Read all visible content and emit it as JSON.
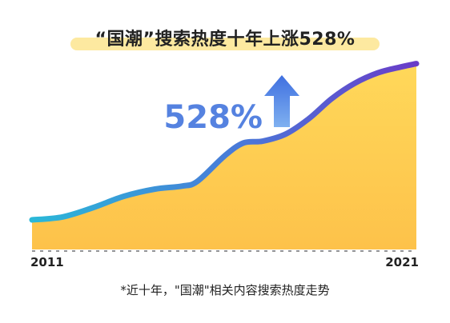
{
  "chart_data": {
    "type": "area",
    "title": "“国潮”搜索热度十年上涨528%",
    "x_labels": [
      "2011",
      "2021"
    ],
    "x_range": [
      2011,
      2021
    ],
    "growth_label": "528%",
    "growth_percent": 528,
    "points": [
      {
        "x": 2011.0,
        "y": 100
      },
      {
        "x": 2011.8,
        "y": 110
      },
      {
        "x": 2012.6,
        "y": 142
      },
      {
        "x": 2013.4,
        "y": 180
      },
      {
        "x": 2014.2,
        "y": 204
      },
      {
        "x": 2014.9,
        "y": 214
      },
      {
        "x": 2015.3,
        "y": 230
      },
      {
        "x": 2016.0,
        "y": 315
      },
      {
        "x": 2016.5,
        "y": 360
      },
      {
        "x": 2017.0,
        "y": 366
      },
      {
        "x": 2017.6,
        "y": 390
      },
      {
        "x": 2018.2,
        "y": 442
      },
      {
        "x": 2018.8,
        "y": 510
      },
      {
        "x": 2019.4,
        "y": 562
      },
      {
        "x": 2020.0,
        "y": 597
      },
      {
        "x": 2020.6,
        "y": 617
      },
      {
        "x": 2021.0,
        "y": 628
      }
    ],
    "caption": "*近十年，\"国潮\"相关内容搜索热度走势",
    "colors": {
      "area_top": "#ffd85a",
      "area_bottom": "#fdc24a",
      "line_start": "#2ab8d8",
      "line_mid": "#4a78d8",
      "line_end": "#6a3cc8",
      "arrow": "#4a7ee0",
      "callout_text": "#5582e0",
      "title_highlight": "#fde9a0"
    }
  }
}
